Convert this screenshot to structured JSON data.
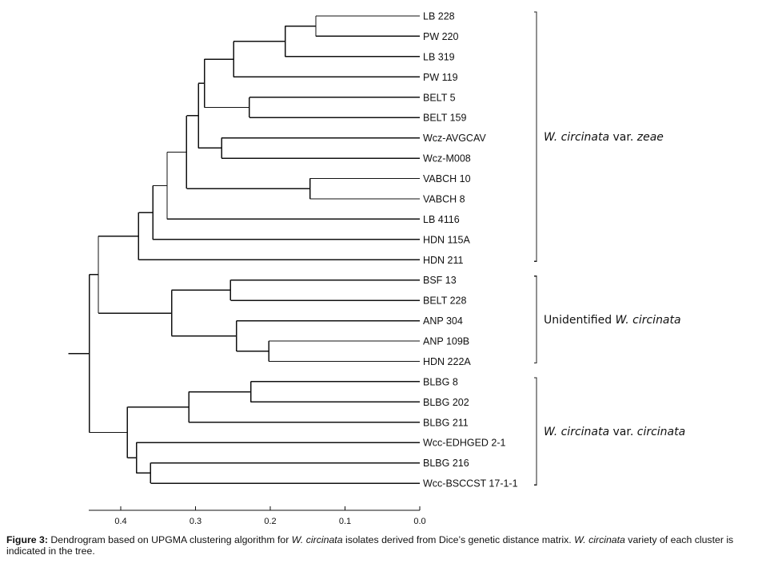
{
  "chart_data": {
    "type": "dendrogram",
    "method": "UPGMA",
    "distance": "Dice's genetic distance",
    "xaxis": {
      "ticks": [
        0.4,
        0.3,
        0.2,
        0.1,
        0.0
      ],
      "tick_labels": [
        "0.4",
        "0.3",
        "0.2",
        "0.1",
        "0.0"
      ],
      "range": [
        0.443,
        0.0
      ],
      "direction": "reversed"
    },
    "leaves": [
      "LB 228",
      "PW 220",
      "LB 319",
      "PW 119",
      "BELT 5",
      "BELT 159",
      "Wcz-AVGCAV",
      "Wcz-M008",
      "VABCH 10",
      "VABCH 8",
      "LB 4116",
      "HDN 115A",
      "HDN 211",
      "BSF 13",
      "BELT 228",
      "ANP 304",
      "ANP 109B",
      "HDN 222A",
      "BLBG 8",
      "BLBG 202",
      "BLBG 211",
      "Wcc-EDHGED 2-1",
      "BLBG 216",
      "Wcc-BSCCST 17-1-1"
    ],
    "tree": {
      "h": 0.442,
      "children": [
        {
          "h": 0.43,
          "children": [
            {
              "h": 0.376,
              "children": [
                {
                  "h": 0.357,
                  "children": [
                    {
                      "h": 0.338,
                      "children": [
                        {
                          "h": 0.312,
                          "children": [
                            {
                              "h": 0.296,
                              "children": [
                                {
                                  "h": 0.288,
                                  "children": [
                                    {
                                      "h": 0.249,
                                      "children": [
                                        {
                                          "h": 0.18,
                                          "children": [
                                            {
                                              "h": 0.139,
                                              "children": [
                                                {
                                                  "leaf": 0
                                                },
                                                {
                                                  "leaf": 1
                                                }
                                              ]
                                            },
                                            {
                                              "leaf": 2
                                            }
                                          ]
                                        },
                                        {
                                          "leaf": 3
                                        }
                                      ]
                                    },
                                    {
                                      "h": 0.228,
                                      "children": [
                                        {
                                          "leaf": 4
                                        },
                                        {
                                          "leaf": 5
                                        }
                                      ]
                                    }
                                  ]
                                },
                                {
                                  "h": 0.265,
                                  "children": [
                                    {
                                      "leaf": 6
                                    },
                                    {
                                      "leaf": 7
                                    }
                                  ]
                                }
                              ]
                            },
                            {
                              "h": 0.147,
                              "children": [
                                {
                                  "leaf": 8
                                },
                                {
                                  "leaf": 9
                                }
                              ]
                            }
                          ]
                        },
                        {
                          "leaf": 10
                        }
                      ]
                    },
                    {
                      "leaf": 11
                    }
                  ]
                },
                {
                  "leaf": 12
                }
              ]
            },
            {
              "h": 0.332,
              "children": [
                {
                  "h": 0.253,
                  "children": [
                    {
                      "leaf": 13
                    },
                    {
                      "leaf": 14
                    }
                  ]
                },
                {
                  "h": 0.245,
                  "children": [
                    {
                      "leaf": 15
                    },
                    {
                      "h": 0.202,
                      "children": [
                        {
                          "leaf": 16
                        },
                        {
                          "leaf": 17
                        }
                      ]
                    }
                  ]
                }
              ]
            }
          ]
        },
        {
          "h": 0.391,
          "children": [
            {
              "h": 0.309,
              "children": [
                {
                  "h": 0.226,
                  "children": [
                    {
                      "leaf": 18
                    },
                    {
                      "leaf": 19
                    }
                  ]
                },
                {
                  "leaf": 20
                }
              ]
            },
            {
              "h": 0.379,
              "children": [
                {
                  "leaf": 21
                },
                {
                  "h": 0.36,
                  "children": [
                    {
                      "leaf": 22
                    },
                    {
                      "leaf": 23
                    }
                  ]
                }
              ]
            }
          ]
        }
      ]
    },
    "groups": [
      {
        "name": "zeae",
        "first_leaf": 0,
        "last_leaf": 12,
        "label_plain": "",
        "label_italic_1": "W. circinata",
        "label_mid": " var. ",
        "label_italic_2": "zeae"
      },
      {
        "name": "unidentified",
        "first_leaf": 13,
        "last_leaf": 17,
        "label_plain": "Unidentified ",
        "label_italic_1": "W. circinata",
        "label_mid": "",
        "label_italic_2": ""
      },
      {
        "name": "circinata",
        "first_leaf": 18,
        "last_leaf": 23,
        "label_plain": "",
        "label_italic_1": "W. circinata",
        "label_mid": " var. ",
        "label_italic_2": "circinata"
      }
    ]
  },
  "caption": {
    "figure_label": "Figure 3:",
    "part1": " Dendrogram based on UPGMA clustering algorithm for ",
    "italic1": "W. circinata",
    "part2": " isolates derived from Dice’s genetic distance matrix. ",
    "italic2": "W. circinata",
    "part3": " variety of each cluster is indicated in the tree."
  }
}
